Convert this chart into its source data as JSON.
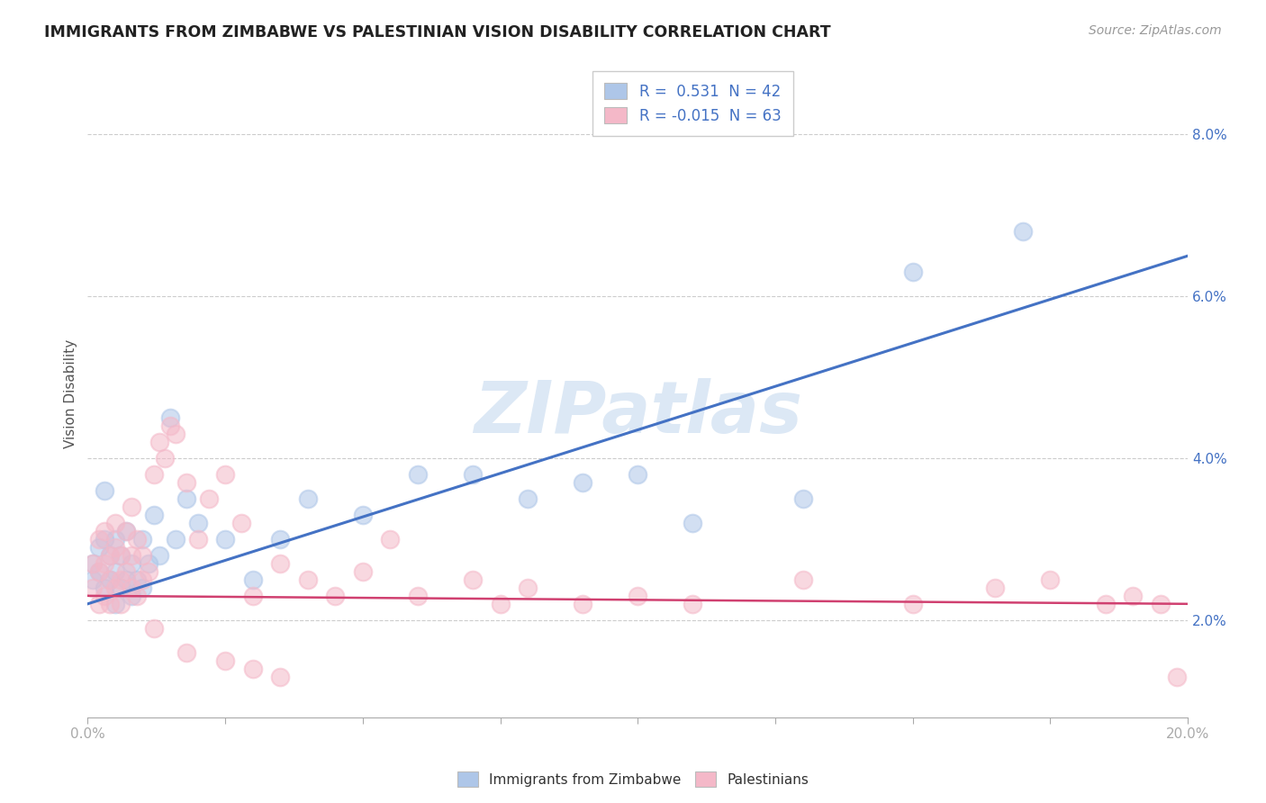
{
  "title": "IMMIGRANTS FROM ZIMBABWE VS PALESTINIAN VISION DISABILITY CORRELATION CHART",
  "source_text": "Source: ZipAtlas.com",
  "ylabel": "Vision Disability",
  "xlim": [
    0.0,
    0.2
  ],
  "ylim": [
    0.008,
    0.088
  ],
  "yticks": [
    0.02,
    0.04,
    0.06,
    0.08
  ],
  "ytick_labels": [
    "2.0%",
    "4.0%",
    "6.0%",
    "8.0%"
  ],
  "xticks": [
    0.0,
    0.025,
    0.05,
    0.075,
    0.1,
    0.125,
    0.15,
    0.175,
    0.2
  ],
  "xtick_labels": [
    "0.0%",
    "",
    "",
    "",
    "",
    "",
    "",
    "",
    "20.0%"
  ],
  "blue_R": 0.531,
  "blue_N": 42,
  "pink_R": -0.015,
  "pink_N": 63,
  "blue_color": "#aec6e8",
  "pink_color": "#f4b8c8",
  "blue_line_color": "#4472c4",
  "pink_line_color": "#d04070",
  "watermark_color": "#dce8f5",
  "background_color": "#ffffff",
  "grid_color": "#cccccc",
  "blue_scatter_x": [
    0.001,
    0.001,
    0.002,
    0.002,
    0.003,
    0.003,
    0.003,
    0.004,
    0.004,
    0.005,
    0.005,
    0.005,
    0.006,
    0.006,
    0.007,
    0.007,
    0.008,
    0.008,
    0.009,
    0.01,
    0.01,
    0.011,
    0.012,
    0.013,
    0.015,
    0.016,
    0.018,
    0.02,
    0.025,
    0.03,
    0.035,
    0.04,
    0.05,
    0.06,
    0.07,
    0.08,
    0.09,
    0.1,
    0.11,
    0.13,
    0.15,
    0.17
  ],
  "blue_scatter_y": [
    0.025,
    0.027,
    0.026,
    0.029,
    0.024,
    0.03,
    0.036,
    0.025,
    0.028,
    0.022,
    0.026,
    0.03,
    0.024,
    0.028,
    0.025,
    0.031,
    0.023,
    0.027,
    0.025,
    0.024,
    0.03,
    0.027,
    0.033,
    0.028,
    0.045,
    0.03,
    0.035,
    0.032,
    0.03,
    0.025,
    0.03,
    0.035,
    0.033,
    0.038,
    0.038,
    0.035,
    0.037,
    0.038,
    0.032,
    0.035,
    0.063,
    0.068
  ],
  "pink_scatter_x": [
    0.001,
    0.001,
    0.002,
    0.002,
    0.002,
    0.003,
    0.003,
    0.003,
    0.004,
    0.004,
    0.004,
    0.005,
    0.005,
    0.005,
    0.006,
    0.006,
    0.006,
    0.007,
    0.007,
    0.008,
    0.008,
    0.008,
    0.009,
    0.009,
    0.01,
    0.01,
    0.011,
    0.012,
    0.013,
    0.014,
    0.015,
    0.016,
    0.018,
    0.02,
    0.022,
    0.025,
    0.028,
    0.03,
    0.035,
    0.04,
    0.045,
    0.05,
    0.055,
    0.06,
    0.07,
    0.075,
    0.08,
    0.09,
    0.1,
    0.11,
    0.13,
    0.15,
    0.165,
    0.175,
    0.185,
    0.19,
    0.195,
    0.198,
    0.012,
    0.018,
    0.025,
    0.03,
    0.035
  ],
  "pink_scatter_y": [
    0.024,
    0.027,
    0.022,
    0.026,
    0.03,
    0.023,
    0.027,
    0.031,
    0.025,
    0.022,
    0.028,
    0.024,
    0.029,
    0.032,
    0.025,
    0.028,
    0.022,
    0.026,
    0.031,
    0.024,
    0.028,
    0.034,
    0.023,
    0.03,
    0.025,
    0.028,
    0.026,
    0.038,
    0.042,
    0.04,
    0.044,
    0.043,
    0.037,
    0.03,
    0.035,
    0.038,
    0.032,
    0.023,
    0.027,
    0.025,
    0.023,
    0.026,
    0.03,
    0.023,
    0.025,
    0.022,
    0.024,
    0.022,
    0.023,
    0.022,
    0.025,
    0.022,
    0.024,
    0.025,
    0.022,
    0.023,
    0.022,
    0.013,
    0.019,
    0.016,
    0.015,
    0.014,
    0.013
  ]
}
